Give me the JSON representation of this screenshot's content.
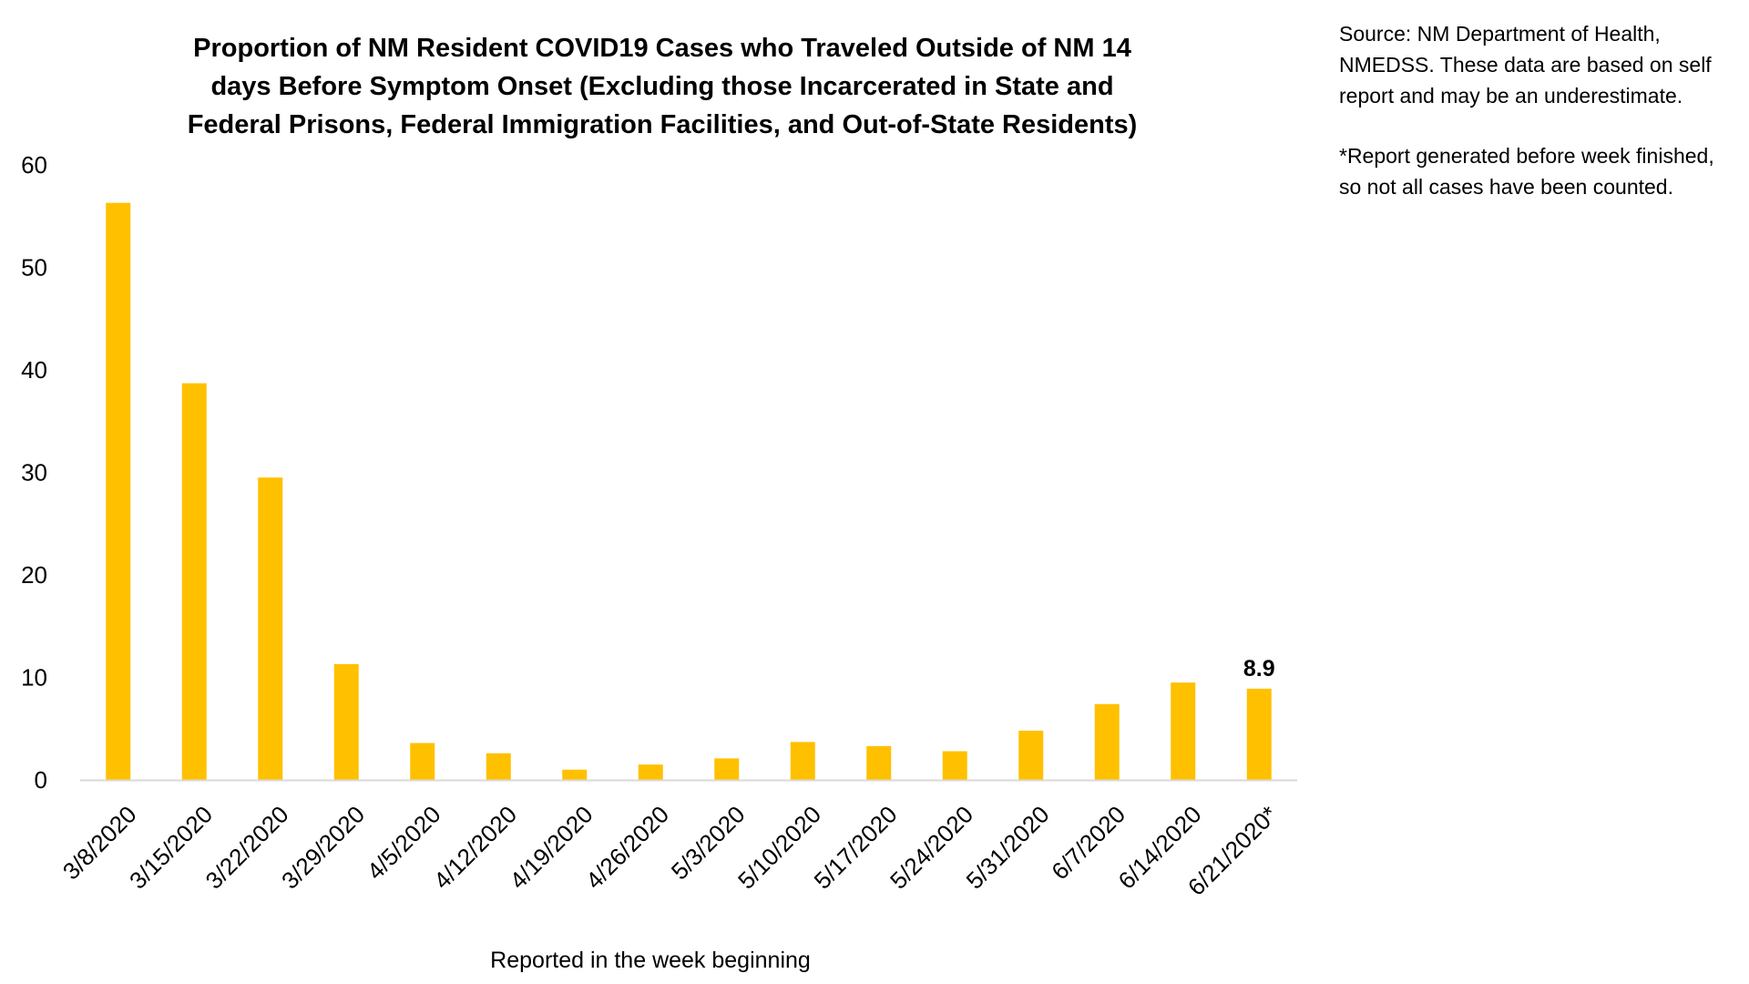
{
  "chart_data": {
    "type": "bar",
    "title_lines": [
      "Proportion of NM Resident COVID19 Cases who Traveled Outside of NM 14",
      "days Before Symptom Onset (Excluding those Incarcerated in State and",
      "Federal Prisons, Federal Immigration Facilities, and Out-of-State Residents)"
    ],
    "xlabel": "Reported in the week beginning",
    "ylabel": "",
    "categories": [
      "3/8/2020",
      "3/15/2020",
      "3/22/2020",
      "3/29/2020",
      "4/5/2020",
      "4/12/2020",
      "4/19/2020",
      "4/26/2020",
      "5/3/2020",
      "5/10/2020",
      "5/17/2020",
      "5/24/2020",
      "5/31/2020",
      "6/7/2020",
      "6/14/2020",
      "6/21/2020*"
    ],
    "values": [
      56.3,
      38.7,
      29.5,
      11.3,
      3.6,
      2.6,
      1.0,
      1.5,
      2.1,
      3.7,
      3.3,
      2.8,
      4.8,
      7.4,
      9.5,
      8.9
    ],
    "ylim": [
      0,
      60
    ],
    "yticks": [
      "0",
      "10",
      "20",
      "30",
      "40",
      "50",
      "60"
    ],
    "data_labels": [
      {
        "category_index": 15,
        "text": "8.9"
      }
    ],
    "grid": false,
    "legend": "none",
    "bar_color": "#FFC000",
    "axis_color": "#D9D9D9"
  },
  "notes": {
    "source": "Source: NM Department of Health, NMEDSS. These data are based on self report and may be an underestimate.",
    "footnote": "*Report generated before week finished, so not all cases have been counted."
  }
}
